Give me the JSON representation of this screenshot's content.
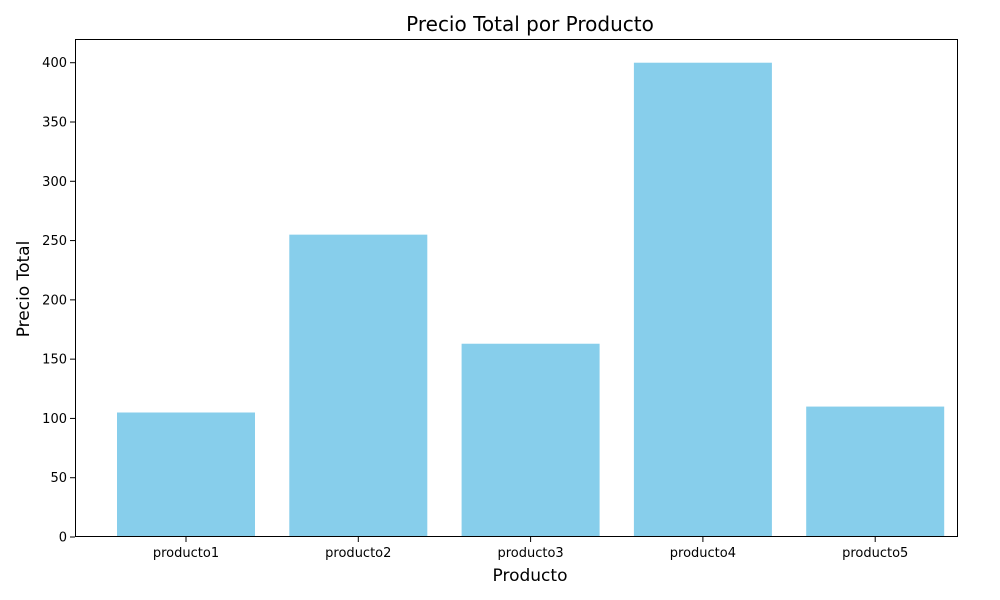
{
  "chart_data": {
    "type": "bar",
    "title": "Precio Total por Producto",
    "xlabel": "Producto",
    "ylabel": "Precio Total",
    "categories": [
      "producto1",
      "producto2",
      "producto3",
      "producto4",
      "producto5"
    ],
    "values": [
      105,
      255,
      163,
      400,
      110
    ],
    "ylim": [
      0,
      420
    ],
    "yticks": [
      0,
      50,
      100,
      150,
      200,
      250,
      300,
      350,
      400
    ],
    "bar_color": "#87CEEB",
    "grid": false,
    "legend": "none"
  }
}
